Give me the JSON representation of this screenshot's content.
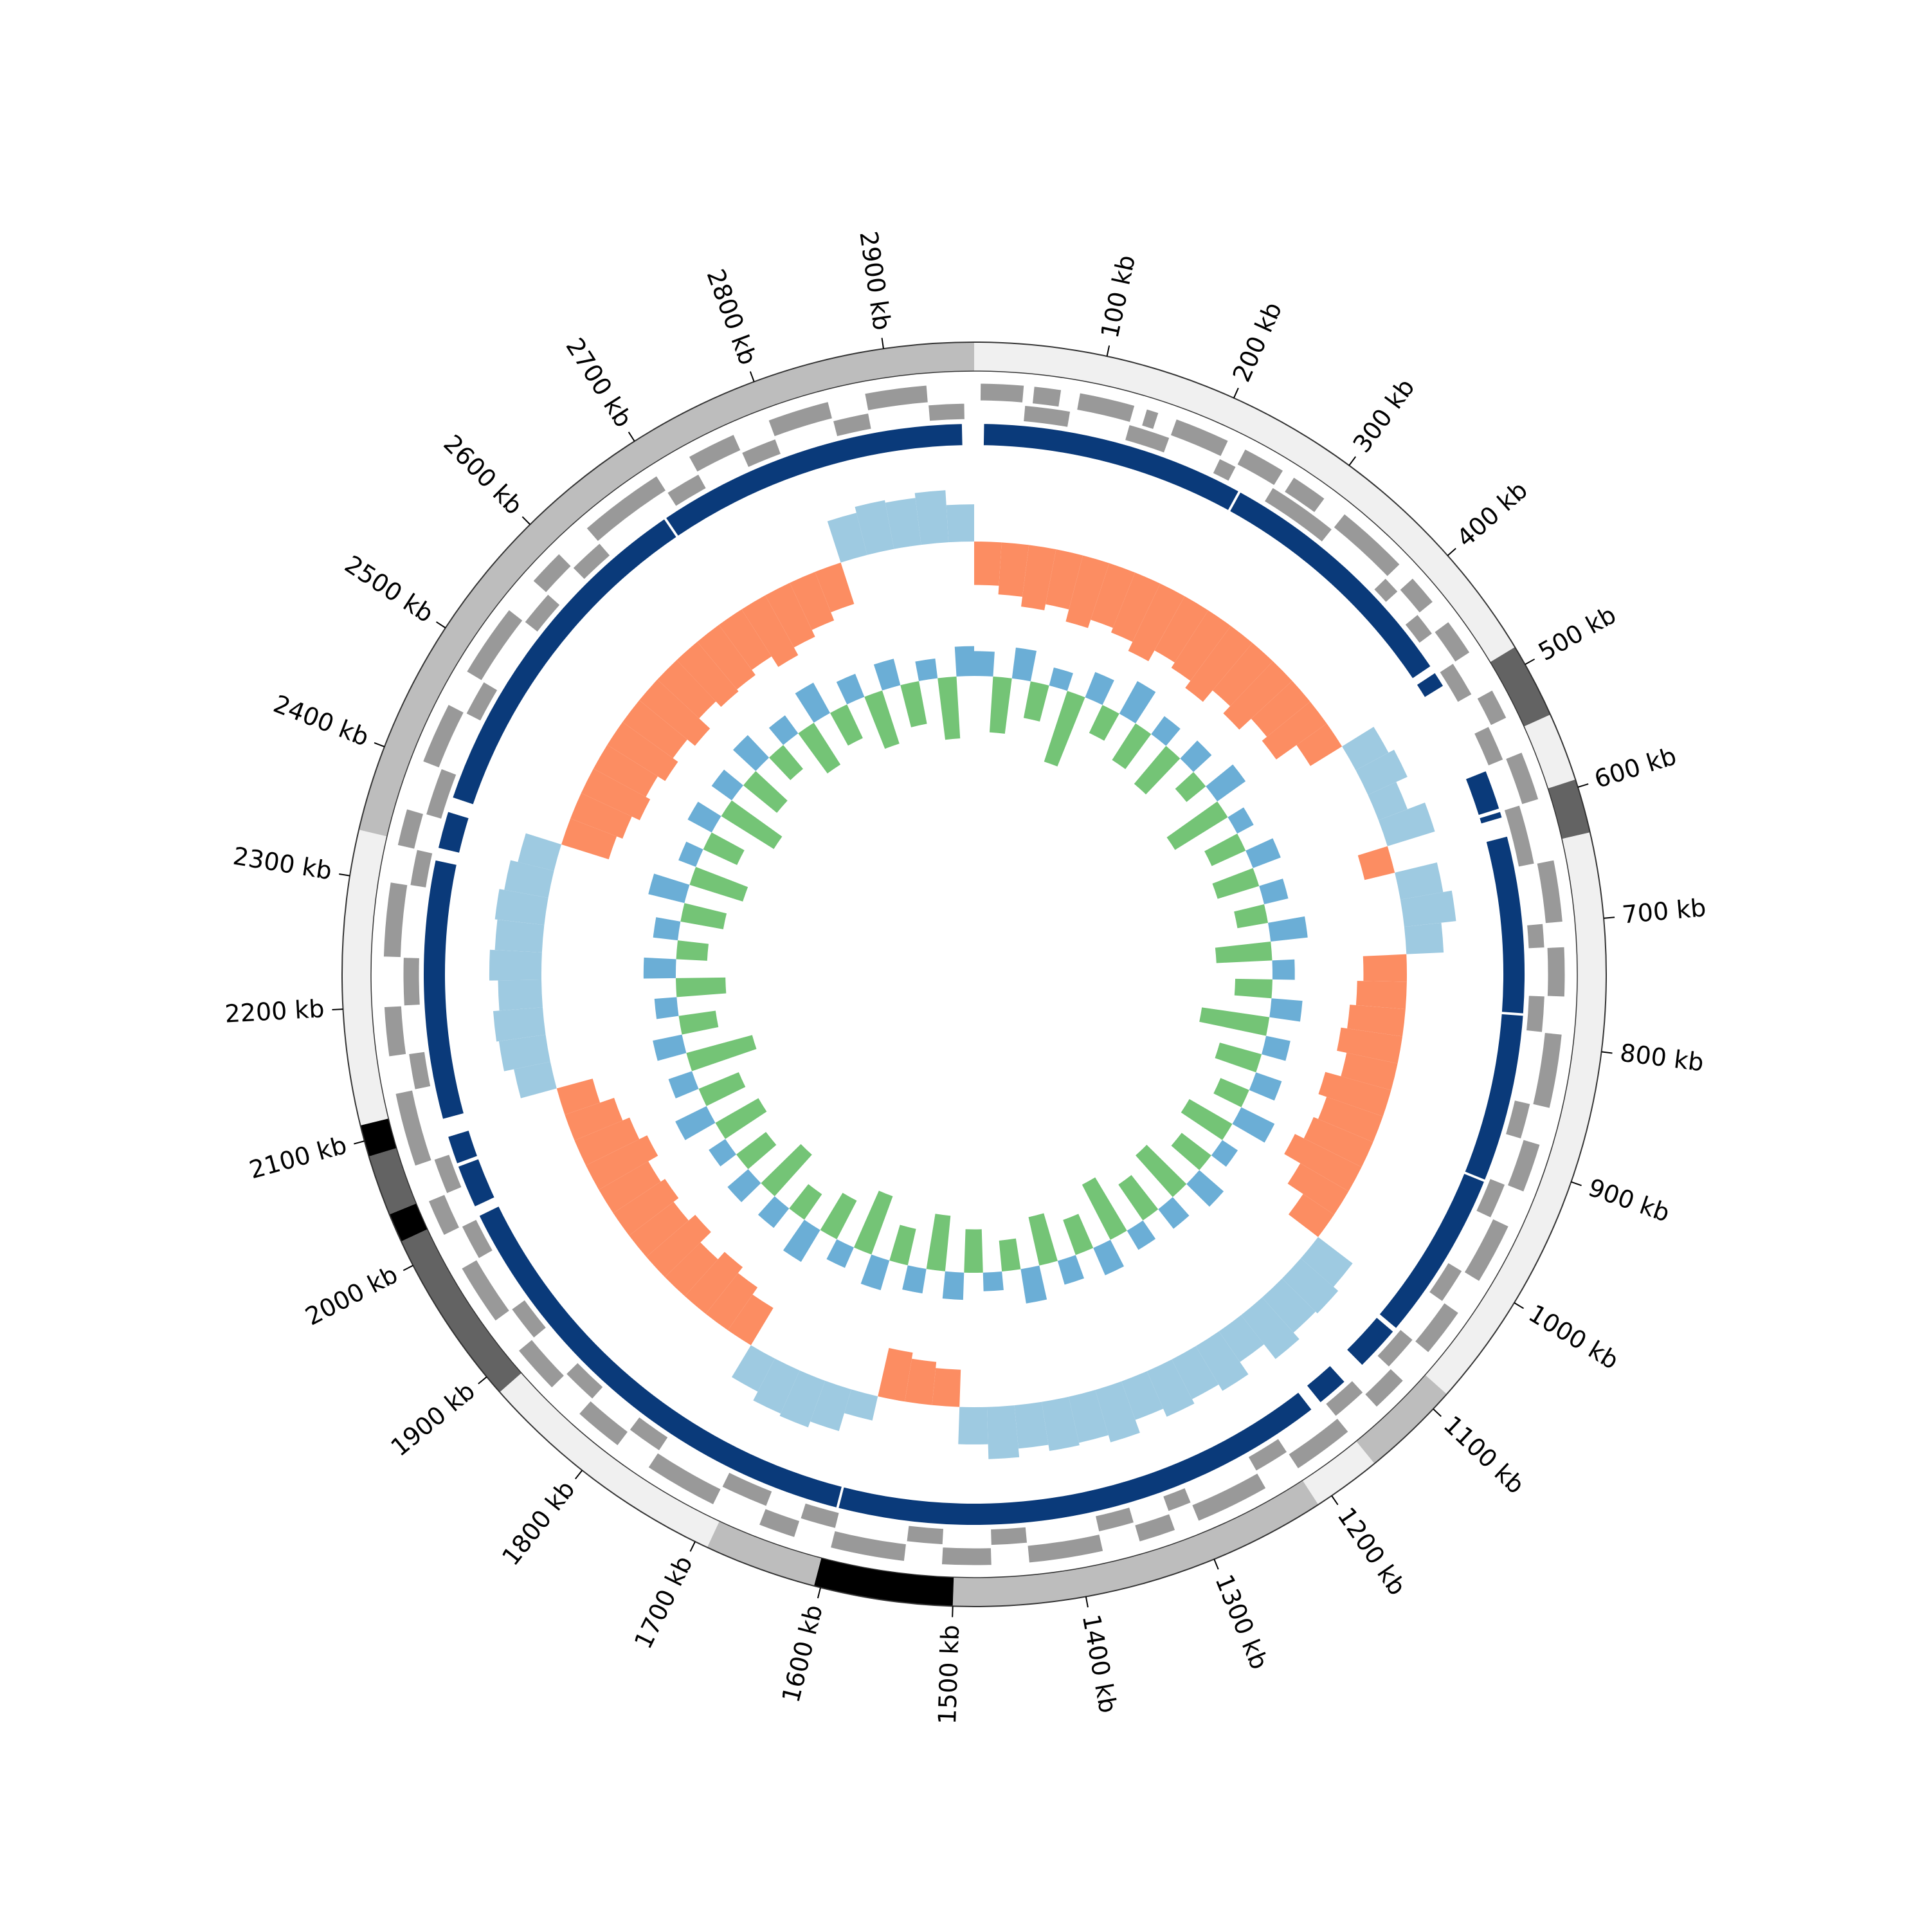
{
  "chart_data": {
    "type": "circos",
    "xlim": [
      0,
      2968
    ],
    "xticks": [
      {
        "value": 100,
        "label": "100 kb"
      },
      {
        "value": 200,
        "label": "200 kb"
      },
      {
        "value": 300,
        "label": "300 kb"
      },
      {
        "value": 400,
        "label": "400 kb"
      },
      {
        "value": 500,
        "label": "500 kb"
      },
      {
        "value": 600,
        "label": "600 kb"
      },
      {
        "value": 700,
        "label": "700 kb"
      },
      {
        "value": 800,
        "label": "800 kb"
      },
      {
        "value": 900,
        "label": "900 kb"
      },
      {
        "value": 1000,
        "label": "1000 kb"
      },
      {
        "value": 1100,
        "label": "1100 kb"
      },
      {
        "value": 1200,
        "label": "1200 kb"
      },
      {
        "value": 1300,
        "label": "1300 kb"
      },
      {
        "value": 1400,
        "label": "1400 kb"
      },
      {
        "value": 1500,
        "label": "1500 kb"
      },
      {
        "value": 1600,
        "label": "1600 kb"
      },
      {
        "value": 1700,
        "label": "1700 kb"
      },
      {
        "value": 1800,
        "label": "1800 kb"
      },
      {
        "value": 1900,
        "label": "1900 kb"
      },
      {
        "value": 2000,
        "label": "2000 kb"
      },
      {
        "value": 2100,
        "label": "2100 kb"
      },
      {
        "value": 2200,
        "label": "2200 kb"
      },
      {
        "value": 2300,
        "label": "2300 kb"
      },
      {
        "value": 2400,
        "label": "2400 kb"
      },
      {
        "value": 2500,
        "label": "2500 kb"
      },
      {
        "value": 2600,
        "label": "2600 kb"
      },
      {
        "value": 2700,
        "label": "2700 kb"
      },
      {
        "value": 2800,
        "label": "2800 kb"
      },
      {
        "value": 2900,
        "label": "2900 kb"
      }
    ],
    "segments": [
      {
        "start": 0,
        "end": 485,
        "color": "#f0f0f0"
      },
      {
        "start": 485,
        "end": 542,
        "color": "#636363"
      },
      {
        "start": 542,
        "end": 594,
        "color": "#f0f0f0"
      },
      {
        "start": 594,
        "end": 635,
        "color": "#636363"
      },
      {
        "start": 635,
        "end": 1085,
        "color": "#f0f0f0"
      },
      {
        "start": 1085,
        "end": 1160,
        "color": "#bdbdbd"
      },
      {
        "start": 1160,
        "end": 1212,
        "color": "#f0f0f0"
      },
      {
        "start": 1212,
        "end": 1500,
        "color": "#bdbdbd"
      },
      {
        "start": 1500,
        "end": 1605,
        "color": "#000000"
      },
      {
        "start": 1605,
        "end": 1690,
        "color": "#bdbdbd"
      },
      {
        "start": 1690,
        "end": 1885,
        "color": "#f0f0f0"
      },
      {
        "start": 1885,
        "end": 2020,
        "color": "#636363"
      },
      {
        "start": 2020,
        "end": 2042,
        "color": "#000000"
      },
      {
        "start": 2042,
        "end": 2088,
        "color": "#636363"
      },
      {
        "start": 2088,
        "end": 2112,
        "color": "#000000"
      },
      {
        "start": 2112,
        "end": 2335,
        "color": "#f0f0f0"
      },
      {
        "start": 2335,
        "end": 2968,
        "color": "#bdbdbd"
      }
    ],
    "features": {
      "color": "#999999",
      "forward": [
        [
          5,
          40
        ],
        [
          48,
          70
        ],
        [
          85,
          130
        ],
        [
          140,
          150
        ],
        [
          165,
          210
        ],
        [
          225,
          260
        ],
        [
          270,
          300
        ],
        [
          320,
          380
        ],
        [
          395,
          420
        ],
        [
          440,
          470
        ],
        [
          505,
          530
        ],
        [
          560,
          600
        ],
        [
          650,
          700
        ],
        [
          720,
          760
        ],
        [
          790,
          850
        ],
        [
          880,
          920
        ],
        [
          950,
          1000
        ],
        [
          1030,
          1070
        ],
        [
          1100,
          1130
        ],
        [
          1160,
          1210
        ],
        [
          1240,
          1300
        ],
        [
          1320,
          1350
        ],
        [
          1380,
          1440
        ],
        [
          1470,
          1510
        ],
        [
          1540,
          1600
        ],
        [
          1630,
          1660
        ],
        [
          1700,
          1760
        ],
        [
          1790,
          1830
        ],
        [
          1860,
          1900
        ],
        [
          1930,
          1980
        ],
        [
          2010,
          2040
        ],
        [
          2070,
          2130
        ],
        [
          2160,
          2200
        ],
        [
          2240,
          2300
        ],
        [
          2330,
          2360
        ],
        [
          2400,
          2450
        ],
        [
          2480,
          2540
        ],
        [
          2570,
          2600
        ],
        [
          2630,
          2700
        ],
        [
          2730,
          2770
        ],
        [
          2800,
          2850
        ],
        [
          2880,
          2930
        ]
      ],
      "reverse": [
        [
          42,
          80
        ],
        [
          130,
          165
        ],
        [
          210,
          225
        ],
        [
          260,
          320
        ],
        [
          380,
          395
        ],
        [
          420,
          440
        ],
        [
          470,
          500
        ],
        [
          530,
          560
        ],
        [
          600,
          650
        ],
        [
          700,
          720
        ],
        [
          760,
          790
        ],
        [
          850,
          880
        ],
        [
          920,
          950
        ],
        [
          1000,
          1030
        ],
        [
          1070,
          1100
        ],
        [
          1130,
          1160
        ],
        [
          1210,
          1240
        ],
        [
          1300,
          1320
        ],
        [
          1350,
          1380
        ],
        [
          1440,
          1470
        ],
        [
          1510,
          1540
        ],
        [
          1600,
          1630
        ],
        [
          1660,
          1700
        ],
        [
          1760,
          1790
        ],
        [
          1830,
          1860
        ],
        [
          1900,
          1930
        ],
        [
          1980,
          2010
        ],
        [
          2040,
          2070
        ],
        [
          2130,
          2160
        ],
        [
          2200,
          2240
        ],
        [
          2300,
          2330
        ],
        [
          2360,
          2400
        ],
        [
          2450,
          2480
        ],
        [
          2540,
          2570
        ],
        [
          2600,
          2630
        ],
        [
          2700,
          2730
        ],
        [
          2770,
          2800
        ],
        [
          2850,
          2880
        ],
        [
          2930,
          2960
        ]
      ]
    },
    "blocks": {
      "color": "#0a3a7a",
      "ranges": [
        [
          8,
          237
        ],
        [
          238,
          462
        ],
        [
          468,
          482
        ],
        [
          563,
          598
        ],
        [
          600,
          606
        ],
        [
          622,
          776
        ],
        [
          777,
          923
        ],
        [
          924,
          1072
        ],
        [
          1075,
          1115
        ],
        [
          1135,
          1163
        ],
        [
          1172,
          1602
        ],
        [
          1603,
          2012
        ],
        [
          2020,
          2058
        ],
        [
          2060,
          2085
        ],
        [
          2100,
          2325
        ],
        [
          2335,
          2368
        ],
        [
          2380,
          2686
        ],
        [
          2687,
          2958
        ]
      ]
    },
    "x": [
      0,
      30,
      60,
      90,
      120,
      150,
      180,
      210,
      240,
      270,
      300,
      330,
      360,
      390,
      420,
      450,
      480,
      510,
      540,
      570,
      600,
      630,
      660,
      690,
      720,
      750,
      780,
      810,
      840,
      870,
      900,
      930,
      960,
      990,
      1020,
      1050,
      1080,
      1110,
      1140,
      1170,
      1200,
      1230,
      1260,
      1290,
      1320,
      1350,
      1380,
      1410,
      1440,
      1470,
      1500,
      1530,
      1560,
      1590,
      1620,
      1650,
      1680,
      1710,
      1740,
      1770,
      1800,
      1830,
      1860,
      1890,
      1920,
      1950,
      1980,
      2010,
      2040,
      2070,
      2100,
      2130,
      2160,
      2190,
      2220,
      2250,
      2280,
      2310,
      2340,
      2370,
      2400,
      2430,
      2460,
      2490,
      2520,
      2550,
      2580,
      2610,
      2640,
      2670,
      2700,
      2730,
      2760,
      2790,
      2820,
      2850,
      2880,
      2910,
      2940
    ],
    "gc_skew": {
      "ylim": [
        -1,
        1
      ],
      "positive_color": "#fc8d62",
      "negative_color": "#9ecae1",
      "values": [
        0.35,
        0.42,
        0.5,
        0.45,
        0.55,
        0.48,
        0.52,
        0.6,
        0.5,
        0.55,
        0.62,
        0.5,
        0.58,
        0.45,
        0.5,
        0.3,
        -0.3,
        -0.35,
        -0.25,
        -0.4,
        0.25,
        -0.35,
        -0.42,
        -0.3,
        0.35,
        0.4,
        0.45,
        0.5,
        0.42,
        0.55,
        0.48,
        0.52,
        0.6,
        0.45,
        0.3,
        -0.35,
        -0.4,
        -0.38,
        -0.45,
        -0.3,
        -0.42,
        -0.36,
        -0.4,
        -0.33,
        -0.44,
        -0.38,
        -0.4,
        -0.35,
        -0.42,
        -0.3,
        0.3,
        0.35,
        0.4,
        -0.2,
        -0.35,
        -0.4,
        -0.38,
        -0.3,
        0.35,
        0.42,
        0.48,
        0.4,
        0.52,
        0.45,
        0.5,
        0.46,
        0.55,
        0.48,
        0.42,
        0.3,
        -0.3,
        -0.38,
        -0.4,
        -0.35,
        -0.42,
        -0.38,
        -0.4,
        -0.36,
        -0.3,
        0.4,
        0.45,
        0.52,
        0.48,
        0.55,
        0.5,
        0.58,
        0.46,
        0.52,
        0.5,
        0.45,
        0.55,
        0.48,
        0.42,
        0.35,
        -0.35,
        -0.4,
        -0.38,
        -0.42,
        -0.3
      ]
    },
    "gc_content": {
      "ylim": [
        -1,
        1
      ],
      "positive_color": "#6baed6",
      "negative_color": "#74c476",
      "values": [
        0.2,
        -0.45,
        0.25,
        -0.3,
        0.15,
        -0.6,
        0.22,
        -0.25,
        0.3,
        -0.35,
        0.18,
        -0.4,
        0.2,
        -0.2,
        0.28,
        -0.5,
        0.15,
        -0.3,
        0.24,
        -0.35,
        0.2,
        -0.25,
        0.3,
        -0.45,
        0.18,
        -0.3,
        0.25,
        -0.55,
        0.2,
        -0.35,
        0.22,
        -0.25,
        0.3,
        -0.4,
        0.15,
        -0.3,
        0.26,
        -0.45,
        0.2,
        -0.35,
        0.18,
        -0.5,
        0.24,
        -0.3,
        0.2,
        -0.4,
        0.28,
        -0.25,
        0.15,
        -0.35,
        0.22,
        -0.45,
        0.2,
        -0.3,
        0.25,
        -0.5,
        0.18,
        -0.35,
        0.3,
        -0.25,
        0.2,
        -0.45,
        0.22,
        -0.3,
        0.16,
        -0.4,
        0.28,
        -0.35,
        0.2,
        -0.55,
        0.24,
        -0.3,
        0.18,
        -0.4,
        0.26,
        -0.25,
        0.2,
        -0.35,
        0.3,
        -0.45,
        0.15,
        -0.3,
        0.22,
        -0.5,
        0.2,
        -0.35,
        0.25,
        -0.25,
        0.18,
        -0.4,
        0.28,
        -0.3,
        0.2,
        -0.45,
        0.22,
        -0.35,
        0.16,
        -0.5,
        0.24
      ]
    }
  }
}
